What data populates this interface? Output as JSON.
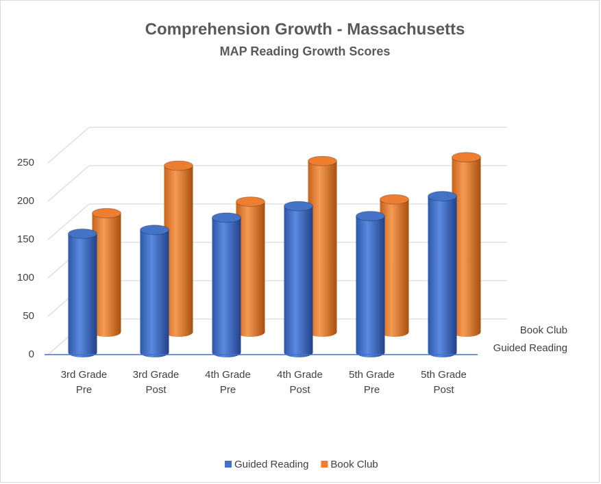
{
  "chart_data": {
    "type": "bar3d",
    "title": "Comprehension Growth - Massachusetts",
    "subtitle": "MAP Reading Growth Scores",
    "categories": [
      "3rd Grade Pre",
      "3rd Grade Post",
      "4th Grade Pre",
      "4th Grade Post",
      "5th Grade Pre",
      "5th Grade Post"
    ],
    "series": [
      {
        "name": "Guided Reading",
        "color": "#4472c4",
        "values": [
          155,
          160,
          176,
          191,
          178,
          204
        ]
      },
      {
        "name": "Book Club",
        "color": "#ed7d31",
        "values": [
          155,
          217,
          170,
          223,
          173,
          228
        ]
      }
    ],
    "ylim": [
      0,
      250
    ],
    "yticks": [
      0,
      50,
      100,
      150,
      200,
      250
    ],
    "grid": true,
    "legend": "bottom"
  }
}
